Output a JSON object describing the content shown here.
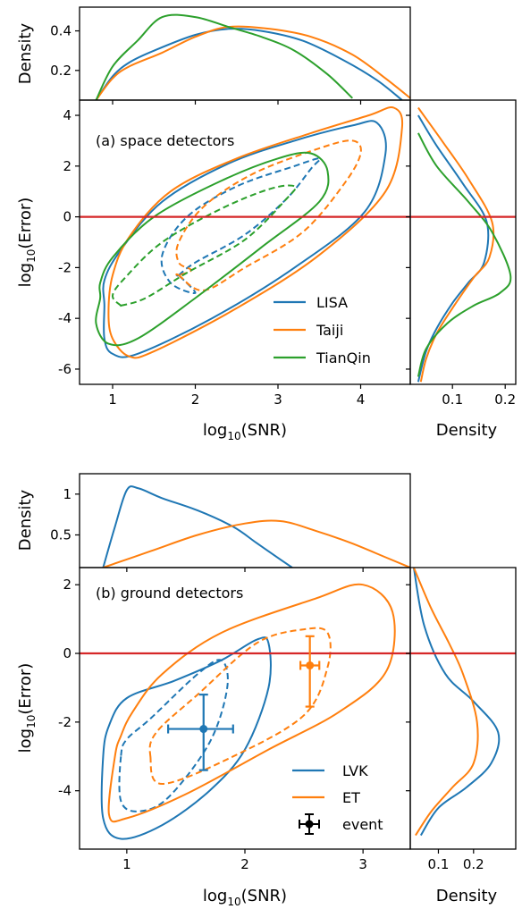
{
  "colors": {
    "blue": "#1f77b4",
    "orange": "#ff7f0e",
    "green": "#2ca02c",
    "red": "#d62728"
  },
  "chart_data": [
    {
      "panel": "a",
      "type": "scatter",
      "annotation": "(a) space detectors",
      "xlabel": "log10(SNR)",
      "ylabel": "log10(Error)",
      "xlim": [
        0.6,
        4.6
      ],
      "ylim": [
        -6.6,
        4.6
      ],
      "xticks": [
        "1",
        "2",
        "3",
        "4"
      ],
      "yticks": [
        "4",
        "2",
        "0",
        "-2",
        "-4",
        "-6"
      ],
      "hline": 0,
      "legend_position": "lower right",
      "top_marginal": {
        "ylabel": "Density",
        "ylim": [
          0.05,
          0.52
        ],
        "yticks": [
          "0.4",
          "0.2"
        ]
      },
      "right_marginal": {
        "xlabel": "Density",
        "xlim": [
          0.02,
          0.22
        ],
        "xticks": [
          "0.1",
          "0.2"
        ]
      },
      "series": [
        {
          "name": "LISA",
          "color": "blue",
          "outer": [
            [
              0.9,
              -3.5
            ],
            [
              0.9,
              -4.8
            ],
            [
              1.0,
              -5.4
            ],
            [
              1.3,
              -5.4
            ],
            [
              2.2,
              -4.0
            ],
            [
              3.2,
              -2.0
            ],
            [
              4.05,
              0.2
            ],
            [
              4.3,
              2.5
            ],
            [
              4.2,
              3.7
            ],
            [
              3.9,
              3.6
            ],
            [
              3.2,
              3.0
            ],
            [
              2.4,
              2.1
            ],
            [
              1.6,
              0.6
            ],
            [
              1.1,
              -1.3
            ],
            [
              0.9,
              -2.5
            ]
          ],
          "inner": [
            [
              1.8,
              -2.3
            ],
            [
              2.0,
              -1.8
            ],
            [
              2.6,
              -0.7
            ],
            [
              3.1,
              0.7
            ],
            [
              3.4,
              1.9
            ],
            [
              3.5,
              2.3
            ],
            [
              3.2,
              2.0
            ],
            [
              2.5,
              1.2
            ],
            [
              1.9,
              0.0
            ],
            [
              1.6,
              -1.5
            ],
            [
              1.7,
              -2.6
            ],
            [
              2.0,
              -3.0
            ],
            [
              1.8,
              -2.3
            ]
          ],
          "top_marginal": [
            [
              0.8,
              0.05
            ],
            [
              1.0,
              0.17
            ],
            [
              1.2,
              0.24
            ],
            [
              1.5,
              0.3
            ],
            [
              2.0,
              0.38
            ],
            [
              2.4,
              0.41
            ],
            [
              2.8,
              0.4
            ],
            [
              3.3,
              0.35
            ],
            [
              3.8,
              0.25
            ],
            [
              4.2,
              0.15
            ],
            [
              4.5,
              0.05
            ]
          ],
          "right_marginal": [
            [
              0.035,
              4.0
            ],
            [
              0.07,
              2.8
            ],
            [
              0.12,
              1.3
            ],
            [
              0.165,
              -0.2
            ],
            [
              0.16,
              -1.8
            ],
            [
              0.13,
              -2.6
            ],
            [
              0.1,
              -3.4
            ],
            [
              0.07,
              -4.4
            ],
            [
              0.05,
              -5.3
            ],
            [
              0.035,
              -6.5
            ]
          ]
        },
        {
          "name": "Taiji",
          "color": "orange",
          "outer": [
            [
              1.0,
              -4.8
            ],
            [
              1.2,
              -5.5
            ],
            [
              1.5,
              -5.3
            ],
            [
              2.5,
              -3.6
            ],
            [
              3.5,
              -1.5
            ],
            [
              4.3,
              1.0
            ],
            [
              4.5,
              3.5
            ],
            [
              4.4,
              4.3
            ],
            [
              4.1,
              4.0
            ],
            [
              3.4,
              3.3
            ],
            [
              2.5,
              2.3
            ],
            [
              1.7,
              1.0
            ],
            [
              1.2,
              -0.8
            ],
            [
              1.0,
              -2.3
            ],
            [
              0.95,
              -3.8
            ]
          ],
          "inner": [
            [
              1.8,
              -2.3
            ],
            [
              2.1,
              -2.9
            ],
            [
              2.6,
              -2.0
            ],
            [
              3.3,
              -0.6
            ],
            [
              3.8,
              1.3
            ],
            [
              4.0,
              2.5
            ],
            [
              3.9,
              3.0
            ],
            [
              3.5,
              2.7
            ],
            [
              2.7,
              1.7
            ],
            [
              2.1,
              0.4
            ],
            [
              1.8,
              -1.0
            ],
            [
              1.8,
              -1.8
            ],
            [
              1.95,
              -2.1
            ],
            [
              1.8,
              -2.3
            ]
          ],
          "top_marginal": [
            [
              0.8,
              0.05
            ],
            [
              1.0,
              0.16
            ],
            [
              1.2,
              0.22
            ],
            [
              1.6,
              0.29
            ],
            [
              2.0,
              0.37
            ],
            [
              2.4,
              0.42
            ],
            [
              2.9,
              0.41
            ],
            [
              3.4,
              0.37
            ],
            [
              3.9,
              0.28
            ],
            [
              4.3,
              0.16
            ],
            [
              4.6,
              0.06
            ]
          ],
          "right_marginal": [
            [
              0.035,
              4.3
            ],
            [
              0.08,
              3.0
            ],
            [
              0.13,
              1.5
            ],
            [
              0.175,
              -0.2
            ],
            [
              0.17,
              -1.6
            ],
            [
              0.14,
              -2.4
            ],
            [
              0.1,
              -3.6
            ],
            [
              0.07,
              -4.6
            ],
            [
              0.05,
              -5.6
            ],
            [
              0.04,
              -6.5
            ]
          ]
        },
        {
          "name": "TianQin",
          "color": "green",
          "outer": [
            [
              0.85,
              -3.2
            ],
            [
              0.8,
              -4.2
            ],
            [
              0.95,
              -5.0
            ],
            [
              1.3,
              -4.8
            ],
            [
              2.0,
              -3.2
            ],
            [
              2.8,
              -1.2
            ],
            [
              3.5,
              0.6
            ],
            [
              3.6,
              1.8
            ],
            [
              3.4,
              2.5
            ],
            [
              3.0,
              2.3
            ],
            [
              2.3,
              1.4
            ],
            [
              1.5,
              0.0
            ],
            [
              1.0,
              -1.6
            ],
            [
              0.85,
              -2.6
            ]
          ],
          "inner": [
            [
              1.1,
              -3.5
            ],
            [
              1.4,
              -3.2
            ],
            [
              1.9,
              -2.2
            ],
            [
              2.6,
              -0.9
            ],
            [
              3.1,
              0.7
            ],
            [
              3.2,
              1.2
            ],
            [
              2.9,
              1.1
            ],
            [
              2.3,
              0.3
            ],
            [
              1.6,
              -1.0
            ],
            [
              1.15,
              -2.4
            ],
            [
              1.0,
              -3.1
            ],
            [
              1.1,
              -3.5
            ]
          ],
          "top_marginal": [
            [
              0.8,
              0.05
            ],
            [
              1.0,
              0.22
            ],
            [
              1.3,
              0.35
            ],
            [
              1.6,
              0.47
            ],
            [
              2.0,
              0.47
            ],
            [
              2.4,
              0.42
            ],
            [
              2.8,
              0.37
            ],
            [
              3.2,
              0.3
            ],
            [
              3.6,
              0.18
            ],
            [
              3.9,
              0.06
            ]
          ],
          "right_marginal": [
            [
              0.035,
              3.3
            ],
            [
              0.07,
              2.0
            ],
            [
              0.13,
              0.6
            ],
            [
              0.175,
              -0.6
            ],
            [
              0.21,
              -2.3
            ],
            [
              0.19,
              -3.0
            ],
            [
              0.14,
              -3.5
            ],
            [
              0.09,
              -4.2
            ],
            [
              0.05,
              -5.2
            ],
            [
              0.035,
              -6.3
            ]
          ]
        }
      ]
    },
    {
      "panel": "b",
      "type": "scatter",
      "annotation": "(b) ground detectors",
      "xlabel": "log10(SNR)",
      "ylabel": "log10(Error)",
      "xlim": [
        0.6,
        3.4
      ],
      "ylim": [
        -5.7,
        2.5
      ],
      "xticks": [
        "1",
        "2",
        "3"
      ],
      "yticks": [
        "2",
        "0",
        "-2",
        "-4"
      ],
      "hline": 0,
      "legend_position": "lower right",
      "top_marginal": {
        "ylabel": "Density",
        "ylim": [
          0.1,
          1.25
        ],
        "yticks": [
          "1",
          "0.5"
        ]
      },
      "right_marginal": {
        "xlabel": "Density",
        "xlim": [
          0.02,
          0.32
        ],
        "xticks": [
          "0.1",
          "0.2"
        ]
      },
      "series": [
        {
          "name": "LVK",
          "color": "blue",
          "outer": [
            [
              0.8,
              -3.0
            ],
            [
              0.8,
              -4.8
            ],
            [
              0.95,
              -5.4
            ],
            [
              1.3,
              -5.0
            ],
            [
              1.7,
              -4.0
            ],
            [
              2.0,
              -2.8
            ],
            [
              2.2,
              -1.0
            ],
            [
              2.2,
              0.3
            ],
            [
              2.1,
              0.4
            ],
            [
              1.8,
              -0.2
            ],
            [
              1.4,
              -0.8
            ],
            [
              1.0,
              -1.3
            ],
            [
              0.85,
              -2.1
            ]
          ],
          "inner": [
            [
              0.95,
              -3.0
            ],
            [
              0.95,
              -4.3
            ],
            [
              1.1,
              -4.6
            ],
            [
              1.35,
              -4.2
            ],
            [
              1.7,
              -2.6
            ],
            [
              1.85,
              -1.0
            ],
            [
              1.8,
              -0.2
            ],
            [
              1.6,
              -0.6
            ],
            [
              1.2,
              -1.9
            ],
            [
              1.0,
              -2.5
            ]
          ],
          "top_marginal": [
            [
              0.8,
              0.1
            ],
            [
              0.9,
              0.6
            ],
            [
              1.0,
              1.05
            ],
            [
              1.1,
              1.07
            ],
            [
              1.3,
              0.95
            ],
            [
              1.6,
              0.8
            ],
            [
              1.9,
              0.6
            ],
            [
              2.1,
              0.4
            ],
            [
              2.3,
              0.2
            ],
            [
              2.4,
              0.1
            ]
          ],
          "right_marginal": [
            [
              0.03,
              2.5
            ],
            [
              0.06,
              0.8
            ],
            [
              0.12,
              -0.6
            ],
            [
              0.2,
              -1.4
            ],
            [
              0.27,
              -2.3
            ],
            [
              0.25,
              -3.2
            ],
            [
              0.18,
              -3.9
            ],
            [
              0.1,
              -4.5
            ],
            [
              0.05,
              -5.3
            ]
          ]
        },
        {
          "name": "ET",
          "color": "orange",
          "outer": [
            [
              0.9,
              -3.0
            ],
            [
              0.85,
              -4.7
            ],
            [
              1.0,
              -4.8
            ],
            [
              1.5,
              -4.1
            ],
            [
              2.2,
              -2.8
            ],
            [
              2.8,
              -1.7
            ],
            [
              3.2,
              -0.5
            ],
            [
              3.25,
              1.2
            ],
            [
              3.0,
              2.0
            ],
            [
              2.6,
              1.6
            ],
            [
              1.8,
              0.6
            ],
            [
              1.3,
              -0.6
            ],
            [
              1.05,
              -1.7
            ],
            [
              0.95,
              -2.4
            ]
          ],
          "inner": [
            [
              1.2,
              -3.0
            ],
            [
              1.3,
              -3.8
            ],
            [
              1.9,
              -3.0
            ],
            [
              2.5,
              -1.8
            ],
            [
              2.7,
              -0.4
            ],
            [
              2.7,
              0.6
            ],
            [
              2.5,
              0.7
            ],
            [
              2.1,
              0.3
            ],
            [
              1.6,
              -1.2
            ],
            [
              1.25,
              -2.3
            ]
          ],
          "top_marginal": [
            [
              0.8,
              0.1
            ],
            [
              1.2,
              0.3
            ],
            [
              1.6,
              0.5
            ],
            [
              2.0,
              0.64
            ],
            [
              2.3,
              0.67
            ],
            [
              2.6,
              0.55
            ],
            [
              2.9,
              0.4
            ],
            [
              3.2,
              0.22
            ],
            [
              3.4,
              0.1
            ]
          ],
          "right_marginal": [
            [
              0.03,
              2.5
            ],
            [
              0.08,
              1.3
            ],
            [
              0.13,
              0.3
            ],
            [
              0.17,
              -0.6
            ],
            [
              0.21,
              -2.0
            ],
            [
              0.2,
              -3.2
            ],
            [
              0.14,
              -3.9
            ],
            [
              0.08,
              -4.6
            ],
            [
              0.035,
              -5.3
            ]
          ]
        }
      ],
      "events": [
        {
          "color": "blue",
          "x": 1.65,
          "y": -2.2,
          "x_err": [
            0.3,
            0.25
          ],
          "y_err": [
            1.2,
            1.0
          ]
        },
        {
          "color": "orange",
          "x": 2.55,
          "y": -0.35,
          "x_err": [
            0.08,
            0.08
          ],
          "y_err": [
            1.2,
            0.85
          ]
        }
      ],
      "event_legend": "event"
    }
  ]
}
